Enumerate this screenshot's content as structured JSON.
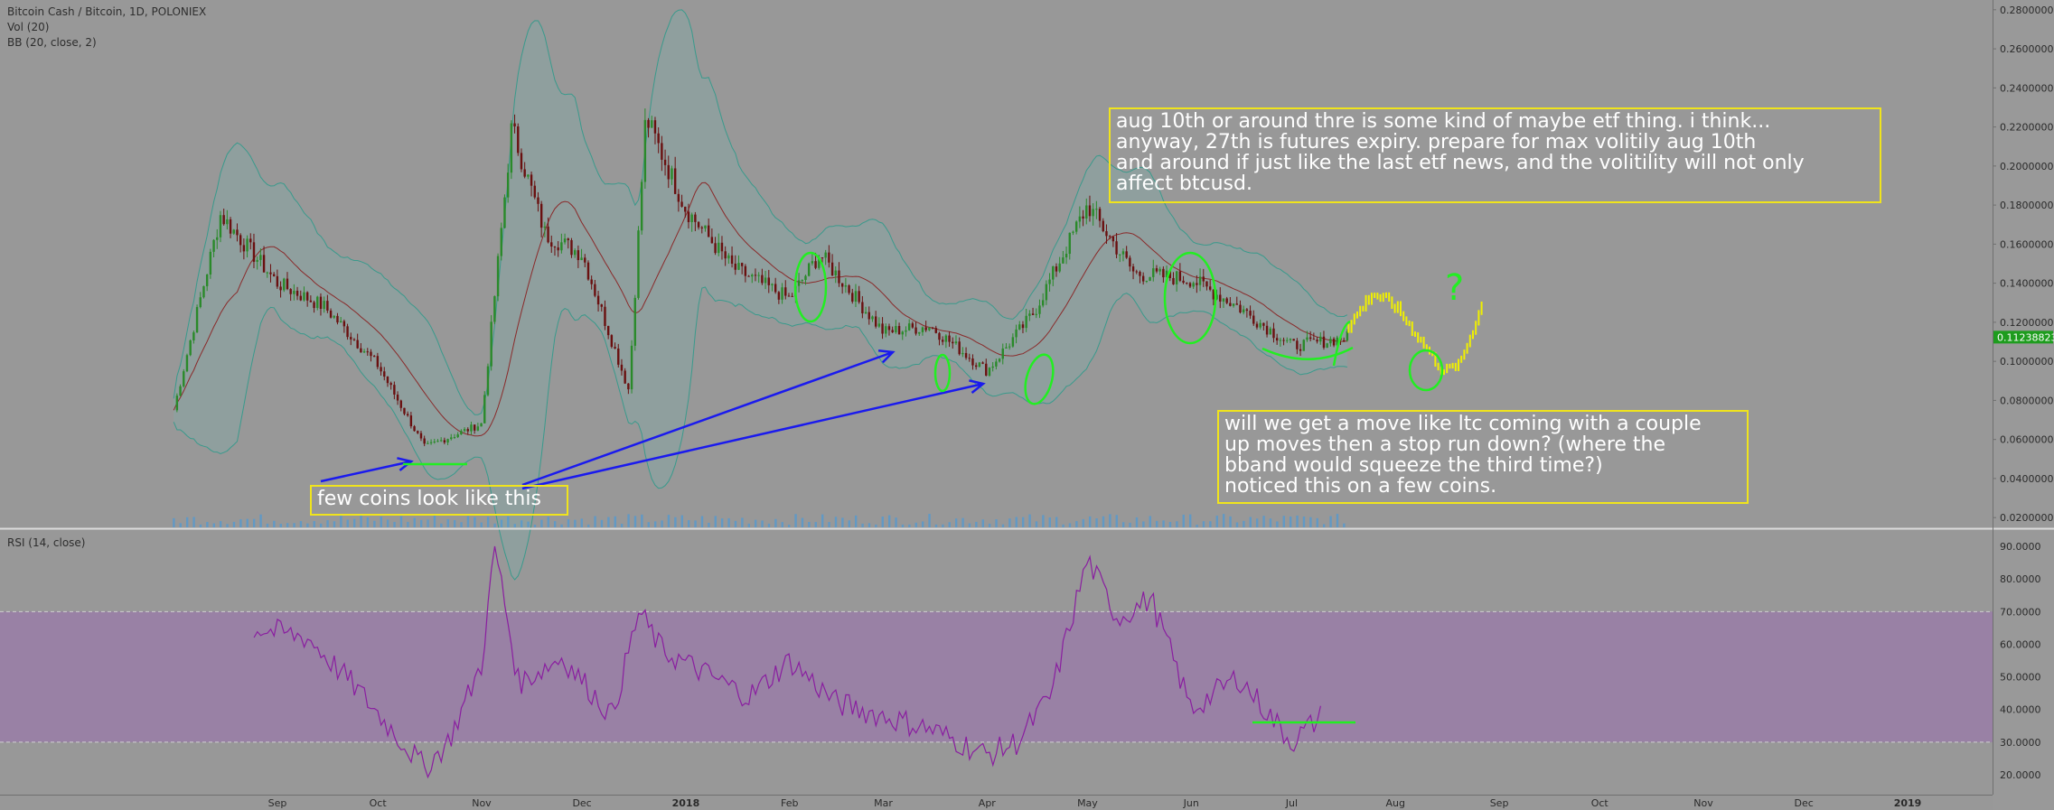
{
  "header": {
    "symbol_line": "Bitcoin Cash / Bitcoin, 1D, POLONIEX",
    "vol_line": "Vol (20)",
    "bb_line": "BB (20, close, 2)",
    "rsi_line": "RSI (14, close)"
  },
  "annotations": {
    "top_note": "aug 10th or around thre is some kind of maybe etf thing. i think...\nanyway, 27th is futures expiry. prepare for max volitily aug 10th\nand around if just like the last etf news, and the volitility will not only\naffect btcusd.",
    "right_note": "will we get a move like ltc coming with a couple\nup moves then a stop run down? (where the\nbband would squeeze the third time?)\nnoticed this on a few coins.",
    "left_note": "few coins look like this",
    "question_mark": "?"
  },
  "colors": {
    "background": "#989898",
    "candle_up": "#2a8a2a",
    "candle_down": "#6a1010",
    "bb_band": "#3a9a8c",
    "bb_basis": "#8a2a2a",
    "drawing_green": "#22ee22",
    "drawing_yellow": "#f0f000",
    "arrow_blue": "#1a1aee",
    "rsi_line": "#8a1ea0",
    "rsi_zone": "#9a7aaa",
    "price_label": "#1e9c1e"
  },
  "chart_data": {
    "type": "candlestick",
    "title": "Bitcoin Cash / Bitcoin, 1D, POLONIEX",
    "x": [
      "2017-08-01",
      "2017-08-15",
      "2017-09-01",
      "2017-09-15",
      "2017-10-01",
      "2017-10-15",
      "2017-11-01",
      "2017-11-10",
      "2017-11-20",
      "2017-12-01",
      "2017-12-15",
      "2017-12-20",
      "2018-01-01",
      "2018-01-15",
      "2018-02-01",
      "2018-02-10",
      "2018-03-01",
      "2018-03-15",
      "2018-04-01",
      "2018-04-15",
      "2018-05-01",
      "2018-05-15",
      "2018-06-01",
      "2018-06-15",
      "2018-07-01",
      "2018-07-10",
      "2018-07-18"
    ],
    "close": [
      0.075,
      0.175,
      0.14,
      0.128,
      0.098,
      0.056,
      0.068,
      0.22,
      0.165,
      0.155,
      0.085,
      0.225,
      0.178,
      0.148,
      0.132,
      0.155,
      0.115,
      0.118,
      0.095,
      0.125,
      0.18,
      0.145,
      0.142,
      0.128,
      0.108,
      0.11,
      0.1124
    ],
    "ylim": [
      0.015,
      0.285
    ],
    "y_ticks": [
      "0.28000000",
      "0.26000000",
      "0.24000000",
      "0.22000000",
      "0.20000000",
      "0.18000000",
      "0.16000000",
      "0.14000000",
      "0.12000000",
      "0.10000000",
      "0.08000000",
      "0.06000000",
      "0.04000000",
      "0.02000000"
    ],
    "current_price_label": "0.11238823",
    "x_ticks": [
      "Sep",
      "Oct",
      "Nov",
      "Dec",
      "2018",
      "Feb",
      "Mar",
      "Apr",
      "May",
      "Jun",
      "Jul",
      "Aug",
      "Sep",
      "Oct",
      "Nov",
      "Dec",
      "2019"
    ],
    "bollinger": {
      "period": 20,
      "source": "close",
      "stddev": 2
    },
    "projection": {
      "x": [
        "2018-07-18",
        "2018-07-25",
        "2018-08-01",
        "2018-08-08",
        "2018-08-15",
        "2018-08-20",
        "2018-08-27"
      ],
      "close": [
        0.118,
        0.135,
        0.128,
        0.112,
        0.095,
        0.098,
        0.13
      ]
    },
    "rsi": {
      "period": 14,
      "y_ticks": [
        "90.0000",
        "80.0000",
        "70.0000",
        "60.0000",
        "50.0000",
        "40.0000",
        "30.0000",
        "20.0000"
      ],
      "ylim": [
        15,
        95
      ],
      "upper_band": 70,
      "lower_band": 30,
      "x": [
        "2017-08-25",
        "2017-09-10",
        "2017-09-25",
        "2017-10-05",
        "2017-10-15",
        "2017-10-22",
        "2017-11-01",
        "2017-11-05",
        "2017-11-12",
        "2017-11-25",
        "2017-12-10",
        "2017-12-18",
        "2017-12-25",
        "2018-01-05",
        "2018-01-20",
        "2018-02-01",
        "2018-02-15",
        "2018-03-01",
        "2018-03-15",
        "2018-04-01",
        "2018-04-10",
        "2018-04-20",
        "2018-05-01",
        "2018-05-10",
        "2018-05-20",
        "2018-06-01",
        "2018-06-15",
        "2018-07-01",
        "2018-07-10"
      ],
      "values": [
        65,
        62,
        46,
        34,
        22,
        30,
        54,
        90,
        48,
        56,
        38,
        70,
        58,
        52,
        44,
        55,
        42,
        38,
        34,
        26,
        30,
        44,
        86,
        68,
        74,
        40,
        50,
        30,
        38
      ]
    }
  }
}
